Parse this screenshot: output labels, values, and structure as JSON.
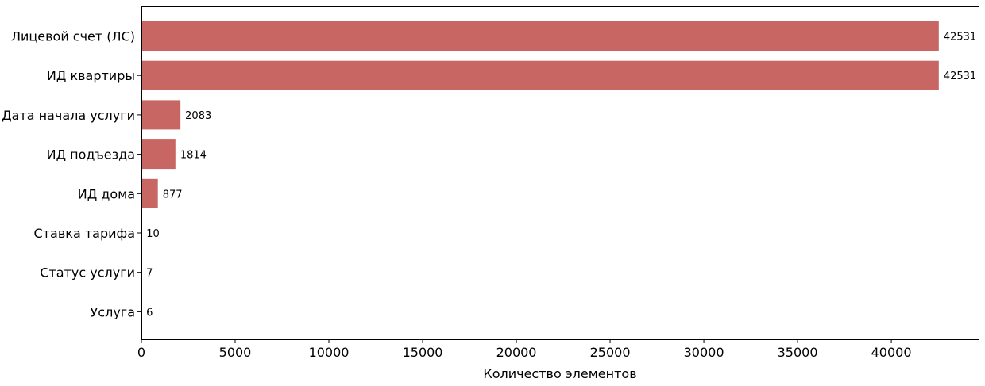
{
  "chart_data": {
    "type": "bar",
    "orientation": "horizontal",
    "categories": [
      "Лицевой счет (ЛС)",
      "ИД квартиры",
      "Дата начала услуги",
      "ИД подъезда",
      "ИД дома",
      "Ставка тарифа",
      "Статус услуги",
      "Услуга"
    ],
    "values": [
      42531,
      42531,
      2083,
      1814,
      877,
      10,
      7,
      6
    ],
    "xlabel": "Количество элементов",
    "ylabel": "",
    "xlim": [
      0,
      44657
    ],
    "xticks": [
      0,
      5000,
      10000,
      15000,
      20000,
      25000,
      30000,
      35000,
      40000
    ],
    "grid": false,
    "legend": "none",
    "bar_color": "#c86664"
  }
}
